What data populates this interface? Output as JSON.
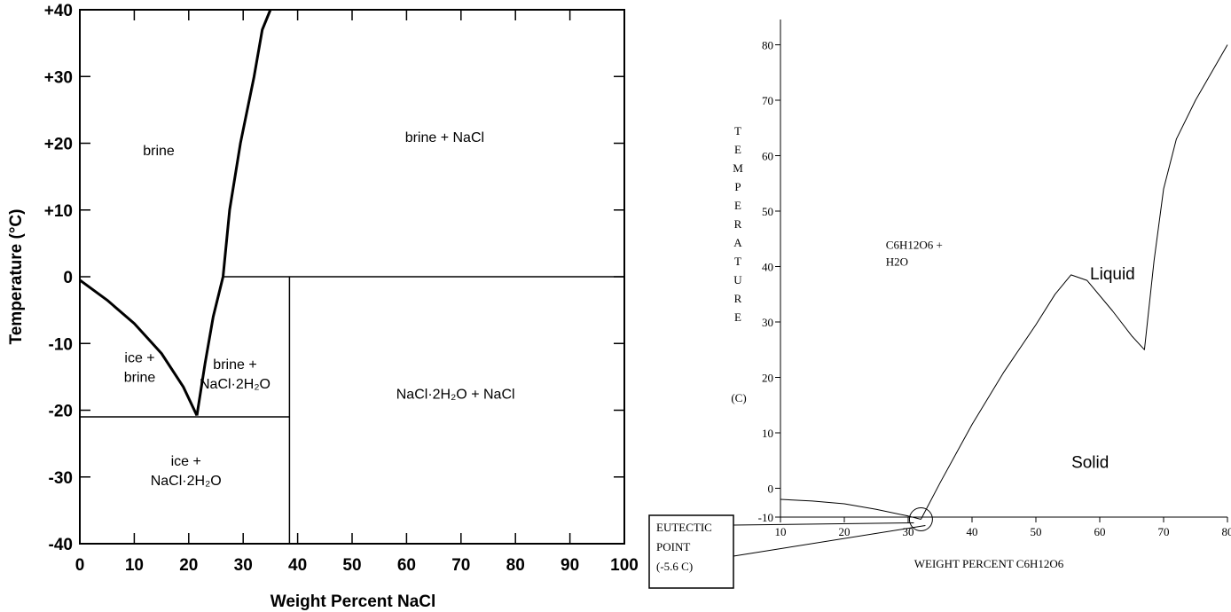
{
  "charts": [
    {
      "chart_data": {
        "type": "line",
        "title": "",
        "xlabel": "Weight Percent NaCl",
        "ylabel": "Temperature (°C)",
        "xlim": [
          0,
          100
        ],
        "ylim": [
          -40,
          40
        ],
        "x_ticks": [
          "0",
          "10",
          "20",
          "30",
          "40",
          "50",
          "60",
          "70",
          "80",
          "90",
          "100"
        ],
        "y_ticks": [
          "-40",
          "-30",
          "-20",
          "-10",
          "0",
          "+10",
          "+20",
          "+30",
          "+40"
        ],
        "series": [
          {
            "name": "",
            "style": "thick",
            "points": [
              [
                0,
                -0.5
              ],
              [
                5,
                -3.5
              ],
              [
                10,
                -7
              ],
              [
                15,
                -11.5
              ],
              [
                19,
                -16.5
              ],
              [
                21.5,
                -20.8
              ]
            ]
          },
          {
            "name": "",
            "style": "thick",
            "points": [
              [
                21.5,
                -20.8
              ],
              [
                23,
                -13
              ],
              [
                24.5,
                -6
              ],
              [
                26.3,
                0
              ]
            ]
          },
          {
            "name": "",
            "style": "thick",
            "points": [
              [
                26.3,
                0
              ],
              [
                27.5,
                10
              ],
              [
                29.5,
                20
              ],
              [
                32,
                30
              ],
              [
                33.5,
                37
              ],
              [
                35,
                40
              ]
            ]
          },
          {
            "name": "",
            "style": "thin",
            "points": [
              [
                26.3,
                0
              ],
              [
                100,
                0
              ]
            ]
          },
          {
            "name": "",
            "style": "thin",
            "points": [
              [
                0,
                -21
              ],
              [
                38.5,
                -21
              ]
            ]
          },
          {
            "name": "",
            "style": "thin",
            "points": [
              [
                38.5,
                0
              ],
              [
                38.5,
                -40
              ]
            ]
          }
        ],
        "regions": [
          {
            "lines": [
              "brine"
            ],
            "x": 14.5,
            "y": 19
          },
          {
            "lines": [
              "brine + NaCl"
            ],
            "x": 67,
            "y": 21
          },
          {
            "lines": [
              "ice +",
              "brine"
            ],
            "x": 11,
            "y": -13.5
          },
          {
            "lines": [
              "brine +",
              "NaCl·2H₂O"
            ],
            "x": 28.5,
            "y": -14.5
          },
          {
            "lines": [
              "NaCl·2H₂O + NaCl"
            ],
            "x": 69,
            "y": -17.5
          },
          {
            "lines": [
              "ice +",
              "NaCl·2H₂O"
            ],
            "x": 19.5,
            "y": -29
          }
        ]
      }
    },
    {
      "chart_data": {
        "type": "line",
        "title": "",
        "xlabel": "WEIGHT PERCENT C6H12O6",
        "ylabel_vertical": [
          "T",
          "E",
          "M",
          "P",
          "E",
          "R",
          "A",
          "T",
          "U",
          "R",
          "E"
        ],
        "ylabel_unit": "(C)",
        "xlim": [
          10,
          80
        ],
        "ylim": [
          -10,
          85
        ],
        "x_ticks": [
          "10",
          "20",
          "30",
          "40",
          "50",
          "60",
          "70",
          "80"
        ],
        "y_ticks": [
          "-10",
          "0",
          "10",
          "20",
          "30",
          "40",
          "50",
          "60",
          "70",
          "80"
        ],
        "series": [
          {
            "name": "",
            "points": [
              [
                10,
                -2
              ],
              [
                15,
                -2.3
              ],
              [
                20,
                -2.8
              ],
              [
                25,
                -3.8
              ],
              [
                30,
                -5
              ],
              [
                32,
                -5.6
              ]
            ]
          },
          {
            "name": "",
            "points": [
              [
                32,
                -5.6
              ],
              [
                35,
                1
              ],
              [
                40,
                11.5
              ],
              [
                45,
                21
              ],
              [
                50,
                29.5
              ],
              [
                53,
                35
              ],
              [
                55.5,
                38.5
              ],
              [
                58,
                37.5
              ],
              [
                62,
                32
              ],
              [
                65,
                27.5
              ],
              [
                67,
                25
              ],
              [
                68.5,
                41
              ],
              [
                70,
                54
              ],
              [
                72,
                63
              ],
              [
                75,
                70
              ],
              [
                80,
                80
              ]
            ]
          }
        ],
        "regions": [
          {
            "lines": [
              "C6H12O6 +",
              "H2O"
            ],
            "x": 26.5,
            "y": 42.5
          },
          {
            "lines": [
              "Liquid"
            ],
            "x": 62,
            "y": 38.5
          },
          {
            "lines": [
              "Solid"
            ],
            "x": 58.5,
            "y": 4.5
          }
        ],
        "annotation": {
          "lines": [
            "EUTECTIC",
            "POINT",
            "(-5.6 C)"
          ],
          "point": [
            32,
            -5.6
          ],
          "value": -5.6
        }
      }
    }
  ]
}
